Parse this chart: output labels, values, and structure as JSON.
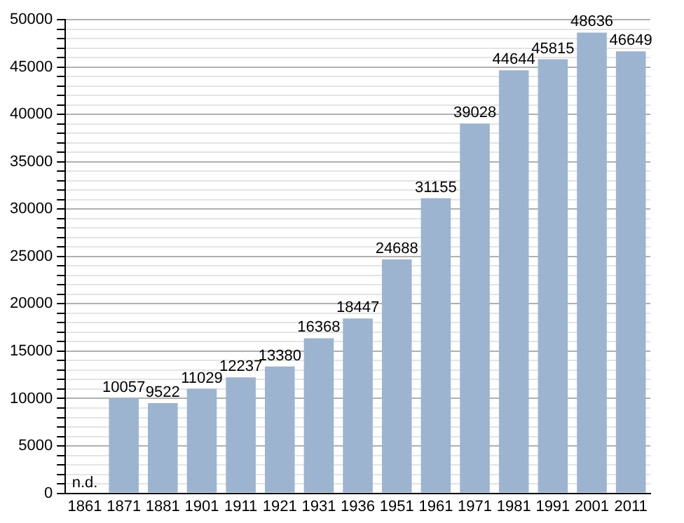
{
  "chart_data": {
    "type": "bar",
    "categories": [
      "1861",
      "1871",
      "1881",
      "1901",
      "1911",
      "1921",
      "1931",
      "1936",
      "1951",
      "1961",
      "1971",
      "1981",
      "1991",
      "2001",
      "2011"
    ],
    "values": [
      null,
      10057,
      9522,
      11029,
      12237,
      13380,
      16368,
      18447,
      24688,
      31155,
      39028,
      44644,
      45815,
      48636,
      46649
    ],
    "value_labels": [
      "n.d.",
      "10057",
      "9522",
      "11029",
      "12237",
      "13380",
      "16368",
      "18447",
      "24688",
      "31155",
      "39028",
      "44644",
      "45815",
      "48636",
      "46649"
    ],
    "color": "#9cb4d0",
    "ylim": [
      0,
      50000
    ],
    "yticks": [
      0,
      {
        "value": 1000,
        "label": null
      },
      {
        "value": 2000,
        "label": null
      },
      {
        "value": 3000,
        "label": null
      },
      {
        "value": 4000,
        "label": null
      },
      5000,
      {
        "value": 6000,
        "label": null
      },
      {
        "value": 7000,
        "label": null
      },
      {
        "value": 8000,
        "label": null
      },
      {
        "value": 9000,
        "label": null
      },
      10000,
      {
        "value": 11000,
        "label": null
      },
      {
        "value": 12000,
        "label": null
      },
      {
        "value": 13000,
        "label": null
      },
      {
        "value": 14000,
        "label": null
      },
      15000,
      {
        "value": 16000,
        "label": null
      },
      {
        "value": 17000,
        "label": null
      },
      {
        "value": 18000,
        "label": null
      },
      {
        "value": 19000,
        "label": null
      },
      20000,
      {
        "value": 21000,
        "label": null
      },
      {
        "value": 22000,
        "label": null
      },
      {
        "value": 23000,
        "label": null
      },
      {
        "value": 24000,
        "label": null
      },
      25000,
      {
        "value": 26000,
        "label": null
      },
      {
        "value": 27000,
        "label": null
      },
      {
        "value": 28000,
        "label": null
      },
      {
        "value": 29000,
        "label": null
      },
      30000,
      {
        "value": 31000,
        "label": null
      },
      {
        "value": 32000,
        "label": null
      },
      {
        "value": 33000,
        "label": null
      },
      {
        "value": 34000,
        "label": null
      },
      35000,
      {
        "value": 36000,
        "label": null
      },
      {
        "value": 37000,
        "label": null
      },
      {
        "value": 38000,
        "label": null
      },
      {
        "value": 39000,
        "label": null
      },
      40000,
      {
        "value": 41000,
        "label": null
      },
      {
        "value": 42000,
        "label": null
      },
      {
        "value": 43000,
        "label": null
      },
      {
        "value": 44000,
        "label": null
      },
      45000,
      {
        "value": 46000,
        "label": null
      },
      {
        "value": 47000,
        "label": null
      },
      {
        "value": 48000,
        "label": null
      },
      {
        "value": 49000,
        "label": null
      },
      50000
    ],
    "grid": "y"
  }
}
